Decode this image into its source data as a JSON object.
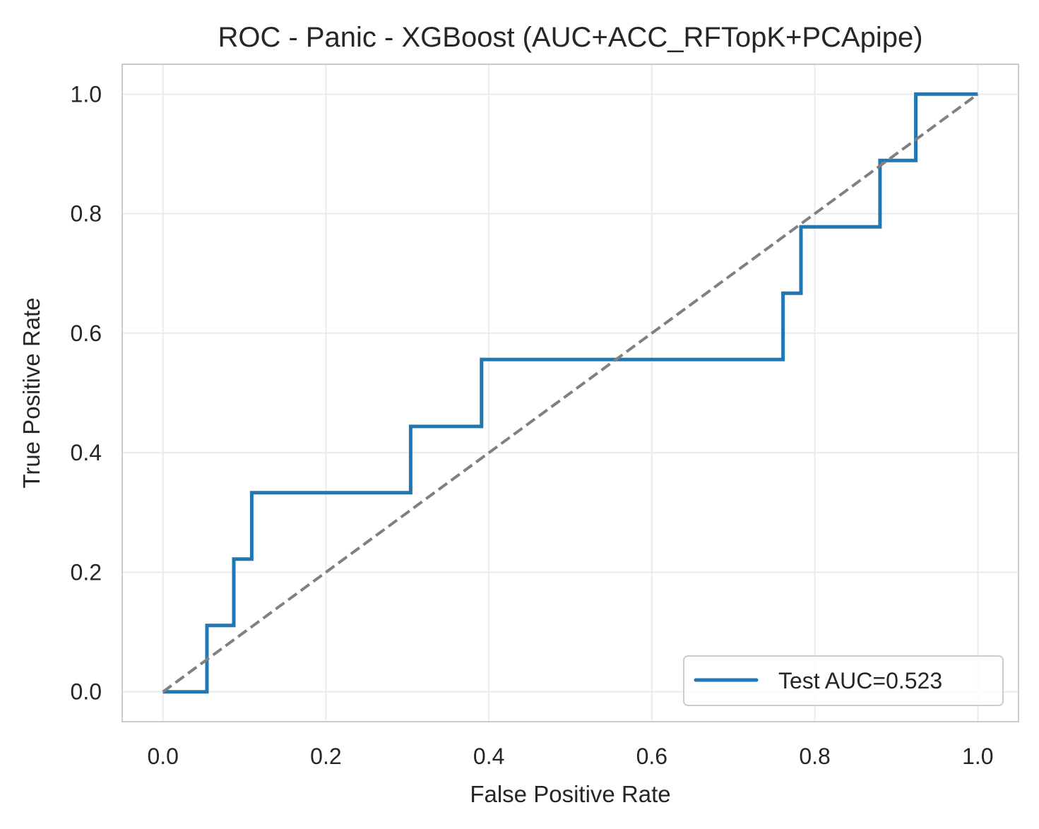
{
  "chart_data": {
    "type": "line",
    "title": "ROC - Panic - XGBoost (AUC+ACC_RFTopK+PCApipe)",
    "xlabel": "False Positive Rate",
    "ylabel": "True Positive Rate",
    "xlim": [
      -0.05,
      1.05
    ],
    "ylim": [
      -0.05,
      1.05
    ],
    "xticks": [
      0.0,
      0.2,
      0.4,
      0.6,
      0.8,
      1.0
    ],
    "yticks": [
      0.0,
      0.2,
      0.4,
      0.6,
      0.8,
      1.0
    ],
    "xtick_labels": [
      "0.0",
      "0.2",
      "0.4",
      "0.6",
      "0.8",
      "1.0"
    ],
    "ytick_labels": [
      "0.0",
      "0.2",
      "0.4",
      "0.6",
      "0.8",
      "1.0"
    ],
    "grid": true,
    "legend_position": "lower-right",
    "series": [
      {
        "name": "Test AUC=0.523",
        "color": "#1f77b4",
        "style": "solid",
        "x": [
          0.0,
          0.054,
          0.054,
          0.087,
          0.087,
          0.109,
          0.109,
          0.304,
          0.304,
          0.391,
          0.391,
          0.761,
          0.761,
          0.783,
          0.783,
          0.88,
          0.88,
          0.924,
          0.924,
          1.0
        ],
        "y": [
          0.0,
          0.0,
          0.111,
          0.111,
          0.222,
          0.222,
          0.333,
          0.333,
          0.444,
          0.444,
          0.556,
          0.556,
          0.667,
          0.667,
          0.778,
          0.778,
          0.889,
          0.889,
          1.0,
          1.0
        ]
      },
      {
        "name": "",
        "color": "#808080",
        "style": "dashed",
        "x": [
          0.0,
          1.0
        ],
        "y": [
          0.0,
          1.0
        ]
      }
    ]
  }
}
